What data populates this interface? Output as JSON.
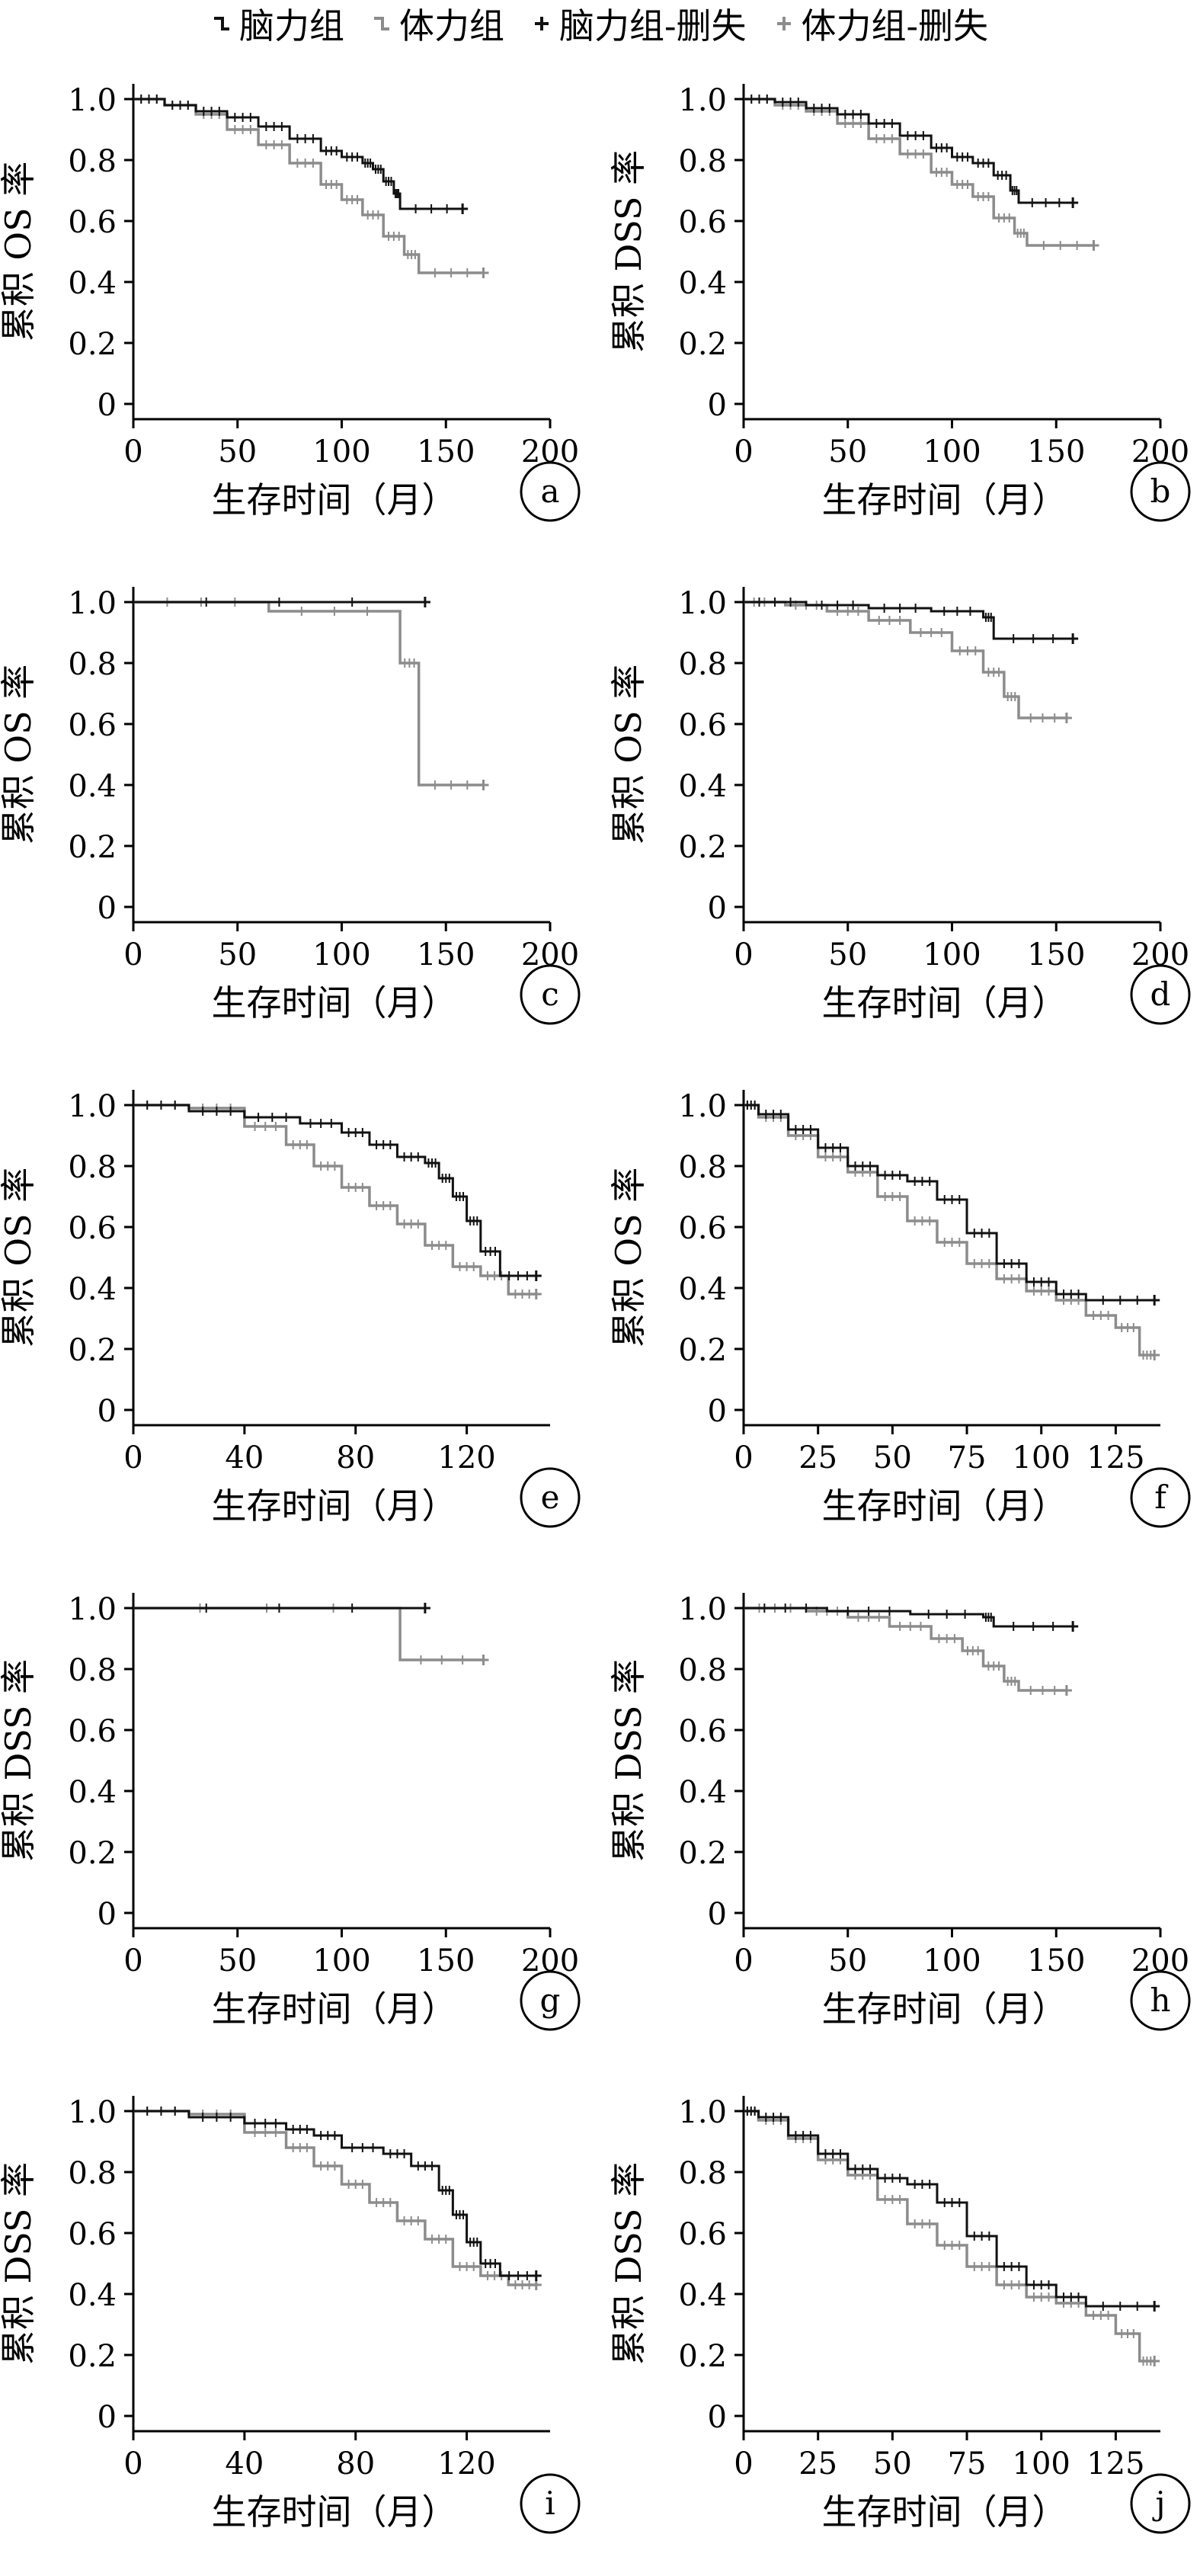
{
  "legend": {
    "items": [
      {
        "label": "脑力组",
        "color": "#111111",
        "kind": "step"
      },
      {
        "label": "体力组",
        "color": "#8c8c8c",
        "kind": "step"
      },
      {
        "label": "脑力组-删失",
        "color": "#111111",
        "kind": "plus"
      },
      {
        "label": "体力组-删失",
        "color": "#8c8c8c",
        "kind": "plus"
      }
    ]
  },
  "chart_data": [
    {
      "panel": "a",
      "type": "line",
      "xlabel": "生存时间（月）",
      "ylabel": "累积 OS 率",
      "xlim": [
        0,
        200
      ],
      "xticks": [
        0,
        50,
        100,
        150,
        200
      ],
      "ylim": [
        0,
        1
      ],
      "yticks": [
        0,
        0.2,
        0.4,
        0.6,
        0.8,
        1.0
      ],
      "series": [
        {
          "name": "脑力组",
          "x": [
            0,
            15,
            30,
            45,
            60,
            75,
            90,
            100,
            110,
            115,
            120,
            125,
            128,
            158
          ],
          "y": [
            1,
            0.98,
            0.96,
            0.94,
            0.91,
            0.87,
            0.83,
            0.81,
            0.79,
            0.77,
            0.73,
            0.69,
            0.64,
            0.64
          ]
        },
        {
          "name": "体力组",
          "x": [
            0,
            15,
            30,
            45,
            60,
            75,
            90,
            100,
            110,
            120,
            130,
            137,
            168
          ],
          "y": [
            1,
            0.98,
            0.95,
            0.9,
            0.85,
            0.79,
            0.72,
            0.67,
            0.62,
            0.55,
            0.49,
            0.43,
            0.43
          ]
        }
      ]
    },
    {
      "panel": "b",
      "type": "line",
      "xlabel": "生存时间（月）",
      "ylabel": "累积 DSS 率",
      "xlim": [
        0,
        200
      ],
      "xticks": [
        0,
        50,
        100,
        150,
        200
      ],
      "ylim": [
        0,
        1
      ],
      "yticks": [
        0,
        0.2,
        0.4,
        0.6,
        0.8,
        1.0
      ],
      "series": [
        {
          "name": "脑力组",
          "x": [
            0,
            15,
            30,
            45,
            60,
            75,
            90,
            100,
            110,
            120,
            128,
            132,
            158
          ],
          "y": [
            1,
            0.99,
            0.97,
            0.95,
            0.92,
            0.88,
            0.84,
            0.81,
            0.79,
            0.75,
            0.7,
            0.66,
            0.66
          ]
        },
        {
          "name": "体力组",
          "x": [
            0,
            15,
            30,
            45,
            60,
            75,
            90,
            100,
            110,
            120,
            130,
            136,
            168
          ],
          "y": [
            1,
            0.98,
            0.96,
            0.92,
            0.87,
            0.82,
            0.76,
            0.72,
            0.68,
            0.61,
            0.56,
            0.52,
            0.52
          ]
        }
      ]
    },
    {
      "panel": "c",
      "type": "line",
      "xlabel": "生存时间（月）",
      "ylabel": "累积 OS 率",
      "xlim": [
        0,
        200
      ],
      "xticks": [
        0,
        50,
        100,
        150,
        200
      ],
      "ylim": [
        0,
        1
      ],
      "yticks": [
        0,
        0.2,
        0.4,
        0.6,
        0.8,
        1.0
      ],
      "series": [
        {
          "name": "脑力组",
          "x": [
            0,
            140
          ],
          "y": [
            1,
            1
          ]
        },
        {
          "name": "体力组",
          "x": [
            0,
            65,
            128,
            137,
            168
          ],
          "y": [
            1,
            0.97,
            0.8,
            0.4,
            0.4
          ]
        }
      ]
    },
    {
      "panel": "d",
      "type": "line",
      "xlabel": "生存时间（月）",
      "ylabel": "累积 OS 率",
      "xlim": [
        0,
        200
      ],
      "xticks": [
        0,
        50,
        100,
        150,
        200
      ],
      "ylim": [
        0,
        1
      ],
      "yticks": [
        0,
        0.2,
        0.4,
        0.6,
        0.8,
        1.0
      ],
      "series": [
        {
          "name": "脑力组",
          "x": [
            0,
            30,
            60,
            90,
            115,
            120,
            158
          ],
          "y": [
            1,
            0.99,
            0.98,
            0.97,
            0.95,
            0.88,
            0.88
          ]
        },
        {
          "name": "体力组",
          "x": [
            0,
            20,
            40,
            60,
            80,
            100,
            115,
            125,
            132,
            155
          ],
          "y": [
            1,
            0.99,
            0.97,
            0.94,
            0.9,
            0.84,
            0.77,
            0.69,
            0.62,
            0.62
          ]
        }
      ]
    },
    {
      "panel": "e",
      "type": "line",
      "xlabel": "生存时间（月）",
      "ylabel": "累积 OS 率",
      "xlim": [
        0,
        150
      ],
      "xticks": [
        0,
        40,
        80,
        120
      ],
      "ylim": [
        0,
        1
      ],
      "yticks": [
        0,
        0.2,
        0.4,
        0.6,
        0.8,
        1.0
      ],
      "series": [
        {
          "name": "脑力组",
          "x": [
            0,
            20,
            40,
            60,
            75,
            85,
            95,
            105,
            110,
            115,
            120,
            125,
            132,
            145
          ],
          "y": [
            1,
            0.98,
            0.96,
            0.94,
            0.91,
            0.87,
            0.83,
            0.81,
            0.76,
            0.7,
            0.62,
            0.52,
            0.44,
            0.44
          ]
        },
        {
          "name": "体力组",
          "x": [
            0,
            20,
            40,
            55,
            65,
            75,
            85,
            95,
            105,
            115,
            125,
            135,
            145
          ],
          "y": [
            1,
            0.99,
            0.93,
            0.87,
            0.8,
            0.73,
            0.67,
            0.61,
            0.54,
            0.47,
            0.44,
            0.38,
            0.38
          ]
        }
      ]
    },
    {
      "panel": "f",
      "type": "line",
      "xlabel": "生存时间（月）",
      "ylabel": "累积 OS 率",
      "xlim": [
        0,
        140
      ],
      "xticks": [
        0,
        25,
        50,
        75,
        100,
        125
      ],
      "ylim": [
        0,
        1
      ],
      "yticks": [
        0,
        0.2,
        0.4,
        0.6,
        0.8,
        1.0
      ],
      "series": [
        {
          "name": "脑力组",
          "x": [
            0,
            5,
            15,
            25,
            35,
            45,
            55,
            65,
            75,
            85,
            95,
            105,
            115,
            138
          ],
          "y": [
            1,
            0.97,
            0.92,
            0.86,
            0.8,
            0.77,
            0.75,
            0.69,
            0.58,
            0.48,
            0.42,
            0.38,
            0.36,
            0.36
          ]
        },
        {
          "name": "体力组",
          "x": [
            0,
            5,
            15,
            25,
            35,
            45,
            55,
            65,
            75,
            85,
            95,
            105,
            115,
            125,
            133,
            138
          ],
          "y": [
            1,
            0.96,
            0.9,
            0.83,
            0.78,
            0.7,
            0.62,
            0.55,
            0.48,
            0.43,
            0.39,
            0.36,
            0.31,
            0.27,
            0.18,
            0.18
          ]
        }
      ]
    },
    {
      "panel": "g",
      "type": "line",
      "xlabel": "生存时间（月）",
      "ylabel": "累积 DSS 率",
      "xlim": [
        0,
        200
      ],
      "xticks": [
        0,
        50,
        100,
        150,
        200
      ],
      "ylim": [
        0,
        1
      ],
      "yticks": [
        0,
        0.2,
        0.4,
        0.6,
        0.8,
        1.0
      ],
      "series": [
        {
          "name": "脑力组",
          "x": [
            0,
            140
          ],
          "y": [
            1,
            1
          ]
        },
        {
          "name": "体力组",
          "x": [
            0,
            128,
            168
          ],
          "y": [
            1,
            0.83,
            0.83
          ]
        }
      ]
    },
    {
      "panel": "h",
      "type": "line",
      "xlabel": "生存时间（月）",
      "ylabel": "累积 DSS 率",
      "xlim": [
        0,
        200
      ],
      "xticks": [
        0,
        50,
        100,
        150,
        200
      ],
      "ylim": [
        0,
        1
      ],
      "yticks": [
        0,
        0.2,
        0.4,
        0.6,
        0.8,
        1.0
      ],
      "series": [
        {
          "name": "脑力组",
          "x": [
            0,
            40,
            80,
            115,
            120,
            158
          ],
          "y": [
            1,
            0.99,
            0.98,
            0.97,
            0.94,
            0.94
          ]
        },
        {
          "name": "体力组",
          "x": [
            0,
            30,
            50,
            70,
            90,
            105,
            115,
            125,
            132,
            155
          ],
          "y": [
            1,
            0.99,
            0.97,
            0.94,
            0.9,
            0.86,
            0.81,
            0.76,
            0.73,
            0.73
          ]
        }
      ]
    },
    {
      "panel": "i",
      "type": "line",
      "xlabel": "生存时间（月）",
      "ylabel": "累积 DSS 率",
      "xlim": [
        0,
        150
      ],
      "xticks": [
        0,
        40,
        80,
        120
      ],
      "ylim": [
        0,
        1
      ],
      "yticks": [
        0,
        0.2,
        0.4,
        0.6,
        0.8,
        1.0
      ],
      "series": [
        {
          "name": "脑力组",
          "x": [
            0,
            20,
            40,
            55,
            65,
            75,
            90,
            100,
            110,
            115,
            120,
            125,
            132,
            145
          ],
          "y": [
            1,
            0.98,
            0.96,
            0.94,
            0.92,
            0.88,
            0.86,
            0.82,
            0.74,
            0.66,
            0.57,
            0.5,
            0.46,
            0.46
          ]
        },
        {
          "name": "体力组",
          "x": [
            0,
            20,
            40,
            55,
            65,
            75,
            85,
            95,
            105,
            115,
            125,
            135,
            145
          ],
          "y": [
            1,
            0.99,
            0.93,
            0.88,
            0.82,
            0.76,
            0.7,
            0.64,
            0.58,
            0.49,
            0.46,
            0.43,
            0.43
          ]
        }
      ]
    },
    {
      "panel": "j",
      "type": "line",
      "xlabel": "生存时间（月）",
      "ylabel": "累积 DSS 率",
      "xlim": [
        0,
        140
      ],
      "xticks": [
        0,
        25,
        50,
        75,
        100,
        125
      ],
      "ylim": [
        0,
        1
      ],
      "yticks": [
        0,
        0.2,
        0.4,
        0.6,
        0.8,
        1.0
      ],
      "series": [
        {
          "name": "脑力组",
          "x": [
            0,
            5,
            15,
            25,
            35,
            45,
            55,
            65,
            75,
            85,
            95,
            105,
            115,
            138
          ],
          "y": [
            1,
            0.98,
            0.92,
            0.86,
            0.81,
            0.78,
            0.76,
            0.7,
            0.59,
            0.49,
            0.43,
            0.39,
            0.36,
            0.36
          ]
        },
        {
          "name": "体力组",
          "x": [
            0,
            5,
            15,
            25,
            35,
            45,
            55,
            65,
            75,
            85,
            95,
            105,
            115,
            125,
            133,
            138
          ],
          "y": [
            1,
            0.97,
            0.91,
            0.84,
            0.79,
            0.71,
            0.63,
            0.56,
            0.49,
            0.43,
            0.39,
            0.37,
            0.33,
            0.27,
            0.18,
            0.18
          ]
        }
      ]
    }
  ]
}
